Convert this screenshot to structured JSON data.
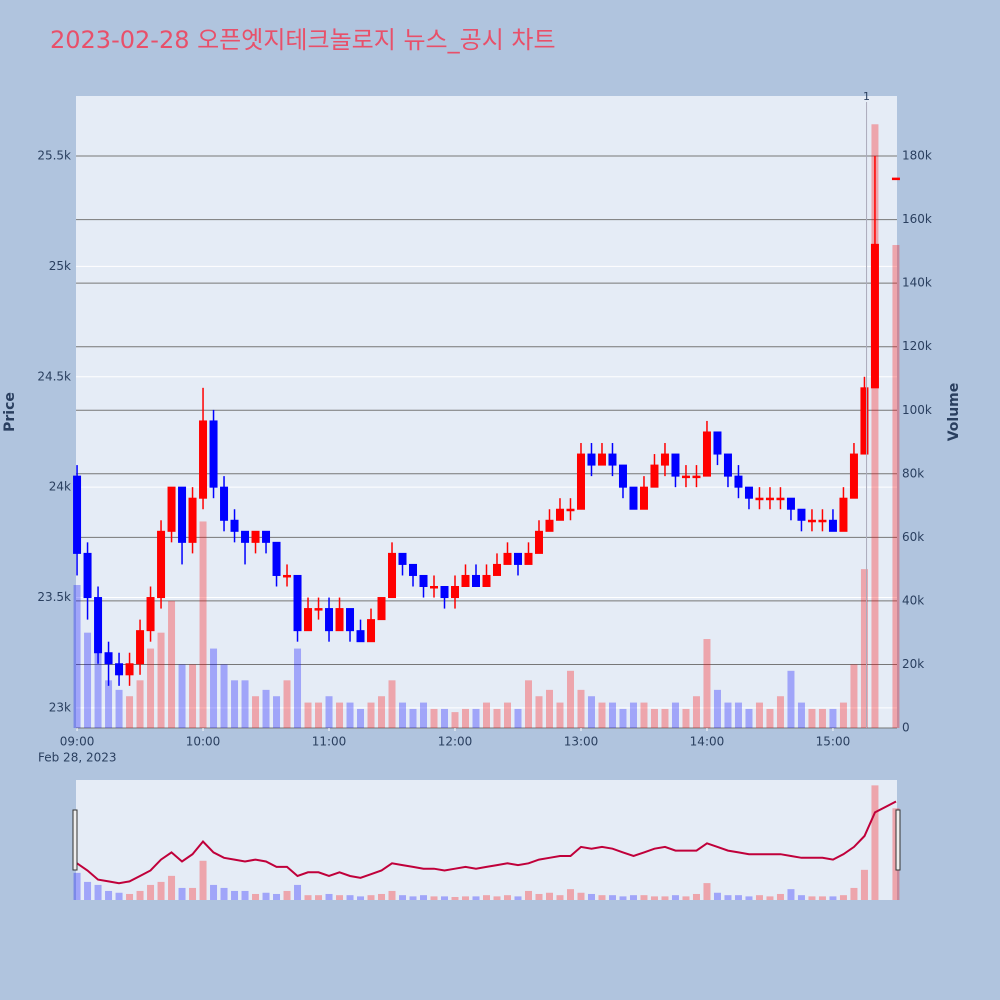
{
  "chart_data": {
    "type": "candlestick",
    "title": "2023-02-28 오픈엣지테크놀로지 뉴스_공시 차트",
    "y_label": "Price",
    "y2_label": "Volume",
    "x_date_label": "Feb 28, 2023",
    "increasing_color": "#ff0000",
    "decreasing_color": "#0000ff",
    "x": [
      "2023-02-28 09:00",
      "2023-02-28 09:05",
      "2023-02-28 09:10",
      "2023-02-28 09:15",
      "2023-02-28 09:20",
      "2023-02-28 09:25",
      "2023-02-28 09:30",
      "2023-02-28 09:35",
      "2023-02-28 09:40",
      "2023-02-28 09:45",
      "2023-02-28 09:50",
      "2023-02-28 09:55",
      "2023-02-28 10:00",
      "2023-02-28 10:05",
      "2023-02-28 10:10",
      "2023-02-28 10:15",
      "2023-02-28 10:20",
      "2023-02-28 10:25",
      "2023-02-28 10:30",
      "2023-02-28 10:35",
      "2023-02-28 10:40",
      "2023-02-28 10:45",
      "2023-02-28 10:50",
      "2023-02-28 10:55",
      "2023-02-28 11:00",
      "2023-02-28 11:05",
      "2023-02-28 11:10",
      "2023-02-28 11:15",
      "2023-02-28 11:20",
      "2023-02-28 11:25",
      "2023-02-28 11:30",
      "2023-02-28 11:35",
      "2023-02-28 11:40",
      "2023-02-28 11:45",
      "2023-02-28 11:50",
      "2023-02-28 11:55",
      "2023-02-28 12:00",
      "2023-02-28 12:05",
      "2023-02-28 12:10",
      "2023-02-28 12:15",
      "2023-02-28 12:20",
      "2023-02-28 12:25",
      "2023-02-28 12:30",
      "2023-02-28 12:35",
      "2023-02-28 12:40",
      "2023-02-28 12:45",
      "2023-02-28 12:50",
      "2023-02-28 12:55",
      "2023-02-28 13:00",
      "2023-02-28 13:05",
      "2023-02-28 13:10",
      "2023-02-28 13:15",
      "2023-02-28 13:20",
      "2023-02-28 13:25",
      "2023-02-28 13:30",
      "2023-02-28 13:35",
      "2023-02-28 13:40",
      "2023-02-28 13:45",
      "2023-02-28 13:50",
      "2023-02-28 13:55",
      "2023-02-28 14:00",
      "2023-02-28 14:05",
      "2023-02-28 14:10",
      "2023-02-28 14:15",
      "2023-02-28 14:20",
      "2023-02-28 14:25",
      "2023-02-28 14:30",
      "2023-02-28 14:35",
      "2023-02-28 14:40",
      "2023-02-28 14:45",
      "2023-02-28 14:50",
      "2023-02-28 14:55",
      "2023-02-28 15:00",
      "2023-02-28 15:05",
      "2023-02-28 15:10",
      "2023-02-28 15:15",
      "2023-02-28 15:20",
      "2023-02-28 15:30"
    ],
    "open": [
      24050,
      23700,
      23500,
      23250,
      23200,
      23150,
      23200,
      23350,
      23500,
      23800,
      24000,
      23750,
      23950,
      24300,
      24000,
      23850,
      23800,
      23750,
      23800,
      23750,
      23600,
      23600,
      23350,
      23450,
      23450,
      23350,
      23450,
      23350,
      23300,
      23400,
      23500,
      23700,
      23650,
      23600,
      23550,
      23550,
      23500,
      23550,
      23600,
      23550,
      23600,
      23650,
      23700,
      23650,
      23700,
      23800,
      23850,
      23900,
      23900,
      24150,
      24100,
      24150,
      24100,
      24000,
      23900,
      24000,
      24100,
      24150,
      24050,
      24050,
      24050,
      24250,
      24150,
      24050,
      24000,
      23950,
      23950,
      23950,
      23950,
      23900,
      23850,
      23850,
      23850,
      23800,
      23950,
      24150,
      24450,
      25400
    ],
    "high": [
      24100,
      23750,
      23550,
      23300,
      23250,
      23250,
      23400,
      23550,
      23850,
      24000,
      24000,
      24000,
      24450,
      24350,
      24050,
      23900,
      23800,
      23800,
      23800,
      23750,
      23650,
      23600,
      23500,
      23500,
      23500,
      23500,
      23450,
      23400,
      23450,
      23500,
      23750,
      23700,
      23650,
      23600,
      23600,
      23550,
      23600,
      23650,
      23650,
      23650,
      23700,
      23750,
      23700,
      23750,
      23850,
      23900,
      23950,
      23950,
      24200,
      24200,
      24200,
      24200,
      24100,
      24000,
      24050,
      24150,
      24200,
      24150,
      24100,
      24100,
      24300,
      24250,
      24150,
      24100,
      24000,
      24000,
      24000,
      24000,
      23950,
      23900,
      23900,
      23900,
      23900,
      24000,
      24200,
      24500,
      25500,
      25400
    ],
    "low": [
      23600,
      23400,
      23200,
      23100,
      23100,
      23100,
      23150,
      23300,
      23450,
      23750,
      23650,
      23700,
      23900,
      23950,
      23800,
      23750,
      23650,
      23700,
      23700,
      23550,
      23550,
      23300,
      23350,
      23400,
      23300,
      23350,
      23300,
      23300,
      23300,
      23400,
      23500,
      23600,
      23550,
      23500,
      23500,
      23450,
      23450,
      23550,
      23550,
      23550,
      23600,
      23650,
      23600,
      23650,
      23700,
      23800,
      23850,
      23850,
      23900,
      24050,
      24100,
      24050,
      23950,
      23900,
      23900,
      24000,
      24050,
      24000,
      24000,
      24000,
      24050,
      24100,
      24000,
      23950,
      23900,
      23900,
      23900,
      23900,
      23850,
      23800,
      23800,
      23800,
      23800,
      23800,
      23950,
      24150,
      24450,
      25400
    ],
    "close": [
      23700,
      23500,
      23250,
      23200,
      23150,
      23200,
      23350,
      23500,
      23800,
      24000,
      23750,
      23950,
      24300,
      24000,
      23850,
      23800,
      23750,
      23800,
      23750,
      23600,
      23600,
      23350,
      23450,
      23450,
      23350,
      23450,
      23350,
      23300,
      23400,
      23500,
      23700,
      23650,
      23600,
      23550,
      23550,
      23500,
      23550,
      23600,
      23550,
      23600,
      23650,
      23700,
      23650,
      23700,
      23800,
      23850,
      23900,
      23900,
      24150,
      24100,
      24150,
      24100,
      24000,
      23900,
      24000,
      24100,
      24150,
      24050,
      24050,
      24050,
      24250,
      24150,
      24050,
      24000,
      23950,
      23950,
      23950,
      23950,
      23900,
      23850,
      23850,
      23850,
      23800,
      23950,
      24150,
      24450,
      25100,
      25400
    ],
    "volume": [
      45000,
      30000,
      25000,
      15000,
      12000,
      10000,
      15000,
      25000,
      30000,
      40000,
      20000,
      20000,
      65000,
      25000,
      20000,
      15000,
      15000,
      10000,
      12000,
      10000,
      15000,
      25000,
      8000,
      8000,
      10000,
      8000,
      8000,
      6000,
      8000,
      10000,
      15000,
      8000,
      6000,
      8000,
      6000,
      6000,
      5000,
      6000,
      6000,
      8000,
      6000,
      8000,
      6000,
      15000,
      10000,
      12000,
      8000,
      18000,
      12000,
      10000,
      8000,
      8000,
      6000,
      8000,
      8000,
      6000,
      6000,
      8000,
      6000,
      10000,
      28000,
      12000,
      8000,
      8000,
      6000,
      8000,
      6000,
      10000,
      18000,
      8000,
      6000,
      6000,
      6000,
      8000,
      20000,
      50000,
      190000,
      152000
    ],
    "xlim": [
      "2023-02-28 08:59:30",
      "2023-02-28 15:30:30"
    ],
    "xticks": [
      {
        "value": "2023-02-28 09:00",
        "label": "09:00"
      },
      {
        "value": "2023-02-28 10:00",
        "label": "10:00"
      },
      {
        "value": "2023-02-28 11:00",
        "label": "11:00"
      },
      {
        "value": "2023-02-28 12:00",
        "label": "12:00"
      },
      {
        "value": "2023-02-28 13:00",
        "label": "13:00"
      },
      {
        "value": "2023-02-28 14:00",
        "label": "14:00"
      },
      {
        "value": "2023-02-28 15:00",
        "label": "15:00"
      }
    ],
    "ylim": [
      22909,
      25772
    ],
    "yticks": [
      {
        "value": 23000,
        "label": "23k"
      },
      {
        "value": 23500,
        "label": "23.5k"
      },
      {
        "value": 24000,
        "label": "24k"
      },
      {
        "value": 24500,
        "label": "24.5k"
      },
      {
        "value": 25000,
        "label": "25k"
      },
      {
        "value": 25500,
        "label": "25.5k"
      }
    ],
    "y2lim": [
      0,
      198900
    ],
    "y2ticks": [
      0,
      {
        "value": 20000,
        "label": "20k"
      },
      {
        "value": 40000,
        "label": "40k"
      },
      {
        "value": 60000,
        "label": "60k"
      },
      {
        "value": 80000,
        "label": "80k"
      },
      {
        "value": 100000,
        "label": "100k"
      },
      {
        "value": 120000,
        "label": "120k"
      },
      {
        "value": 140000,
        "label": "140k"
      },
      {
        "value": 160000,
        "label": "160k"
      },
      {
        "value": 180000,
        "label": "180k"
      }
    ],
    "annotations": [
      {
        "x": "2023-02-28 15:16",
        "text": "1"
      }
    ]
  }
}
